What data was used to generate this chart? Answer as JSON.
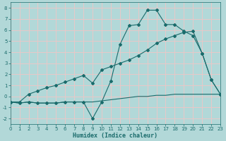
{
  "xlabel": "Humidex (Indice chaleur)",
  "bg_color": "#b2d8d8",
  "grid_color": "#e8c8c8",
  "line_color": "#1a6b6b",
  "x_min": 0,
  "x_max": 23,
  "y_min": -2.5,
  "y_max": 8.5,
  "yticks": [
    -2,
    -1,
    0,
    1,
    2,
    3,
    4,
    5,
    6,
    7,
    8
  ],
  "curve1_x": [
    0,
    1,
    2,
    3,
    4,
    5,
    6,
    7,
    8,
    9,
    10,
    11,
    12,
    13,
    14,
    15,
    16,
    17,
    18,
    19,
    20,
    21,
    22,
    23
  ],
  "curve1_y": [
    -0.5,
    -0.6,
    -0.5,
    -0.6,
    -0.6,
    -0.6,
    -0.5,
    -0.5,
    -0.5,
    -2.0,
    -0.5,
    1.4,
    4.7,
    6.4,
    6.5,
    7.8,
    7.8,
    6.5,
    6.5,
    5.9,
    5.5,
    3.9,
    1.5,
    0.2
  ],
  "curve2_x": [
    0,
    1,
    2,
    3,
    4,
    5,
    6,
    7,
    8,
    9,
    10,
    11,
    12,
    13,
    14,
    15,
    16,
    17,
    18,
    19,
    20,
    21,
    22,
    23
  ],
  "curve2_y": [
    -0.5,
    -0.5,
    0.2,
    0.5,
    0.8,
    1.0,
    1.3,
    1.6,
    1.9,
    1.2,
    2.4,
    2.7,
    3.0,
    3.3,
    3.7,
    4.2,
    4.8,
    5.2,
    5.5,
    5.8,
    5.9,
    3.9,
    1.5,
    0.2
  ],
  "curve3_x": [
    0,
    1,
    2,
    3,
    4,
    5,
    6,
    7,
    8,
    9,
    10,
    11,
    12,
    13,
    14,
    15,
    16,
    17,
    18,
    19,
    20,
    21,
    22,
    23
  ],
  "curve3_y": [
    -0.5,
    -0.6,
    -0.5,
    -0.6,
    -0.6,
    -0.6,
    -0.5,
    -0.5,
    -0.5,
    -0.5,
    -0.4,
    -0.3,
    -0.2,
    -0.1,
    0.0,
    0.0,
    0.1,
    0.1,
    0.2,
    0.2,
    0.2,
    0.2,
    0.2,
    0.2
  ]
}
